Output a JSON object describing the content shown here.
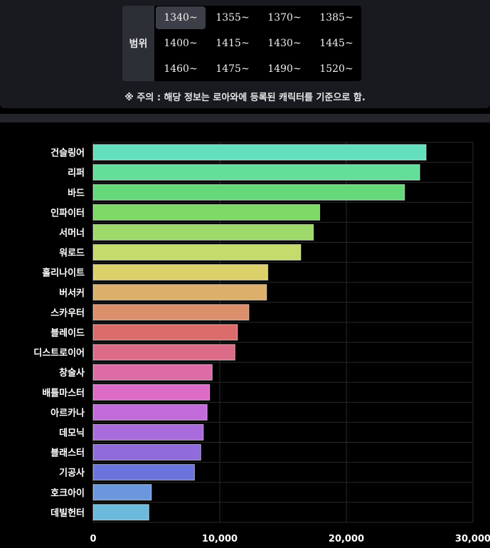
{
  "filter": {
    "label": "범위",
    "active_index": 0,
    "options": [
      "1340~",
      "1355~",
      "1370~",
      "1385~",
      "1400~",
      "1415~",
      "1430~",
      "1445~",
      "1460~",
      "1475~",
      "1490~",
      "1520~"
    ]
  },
  "notice": "※ 주의 : 해당 정보는 로아와에 등록된 캐릭터를 기준으로 함.",
  "chart_data": {
    "type": "bar",
    "orientation": "horizontal",
    "categories": [
      "건슬링어",
      "리퍼",
      "바드",
      "인파이터",
      "서머너",
      "워로드",
      "홀리나이트",
      "버서커",
      "스카우터",
      "블레이드",
      "디스트로이어",
      "창술사",
      "배틀마스터",
      "아르카나",
      "데모닉",
      "블래스터",
      "기공사",
      "호크아이",
      "데빌헌터"
    ],
    "values": [
      26300,
      25800,
      24600,
      17900,
      17400,
      16400,
      13800,
      13700,
      12300,
      11400,
      11200,
      9400,
      9200,
      9000,
      8700,
      8500,
      8000,
      4600,
      4400
    ],
    "colors": [
      "#63dfbd",
      "#63df9a",
      "#65d97a",
      "#7ed967",
      "#9ed96b",
      "#c4dc6b",
      "#dcd06b",
      "#dcb06b",
      "#dc8f6b",
      "#dc6b6b",
      "#dc6b88",
      "#dc6ba6",
      "#dc6bc8",
      "#c46bdc",
      "#a96bdc",
      "#8f6bdc",
      "#6b74dc",
      "#6b98dc",
      "#6bbadc"
    ],
    "xlim": [
      0,
      30000
    ],
    "xticks": [
      "0",
      "10,000",
      "20,000",
      "30,000"
    ],
    "grid": true,
    "legend": "none"
  }
}
